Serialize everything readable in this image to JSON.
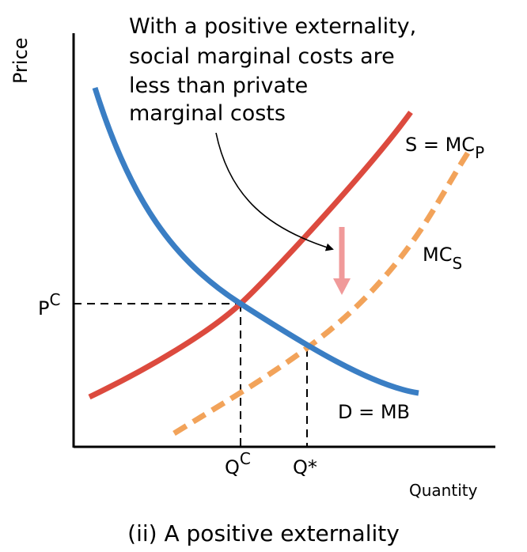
{
  "axes": {
    "y_label": "Price",
    "x_label": "Quantity"
  },
  "annotation": {
    "lines": [
      "With a positive externality,",
      "social marginal costs are",
      "less than private",
      "marginal costs"
    ]
  },
  "curves": {
    "supply": {
      "label": "S = MC",
      "sub": "P",
      "color": "#dc4a3e"
    },
    "social_cost": {
      "label": "MC",
      "sub": "S",
      "color": "#f2a35a"
    },
    "demand": {
      "label": "D = MB",
      "color": "#3a7ec4"
    }
  },
  "markers": {
    "price_competitive": {
      "base": "P",
      "sup": "C"
    },
    "quantity_competitive": {
      "base": "Q",
      "sup": "C"
    },
    "quantity_optimal": {
      "label": "Q*"
    }
  },
  "shift_arrow": {
    "color": "#f09a9a"
  },
  "caption": "(ii) A positive externality"
}
